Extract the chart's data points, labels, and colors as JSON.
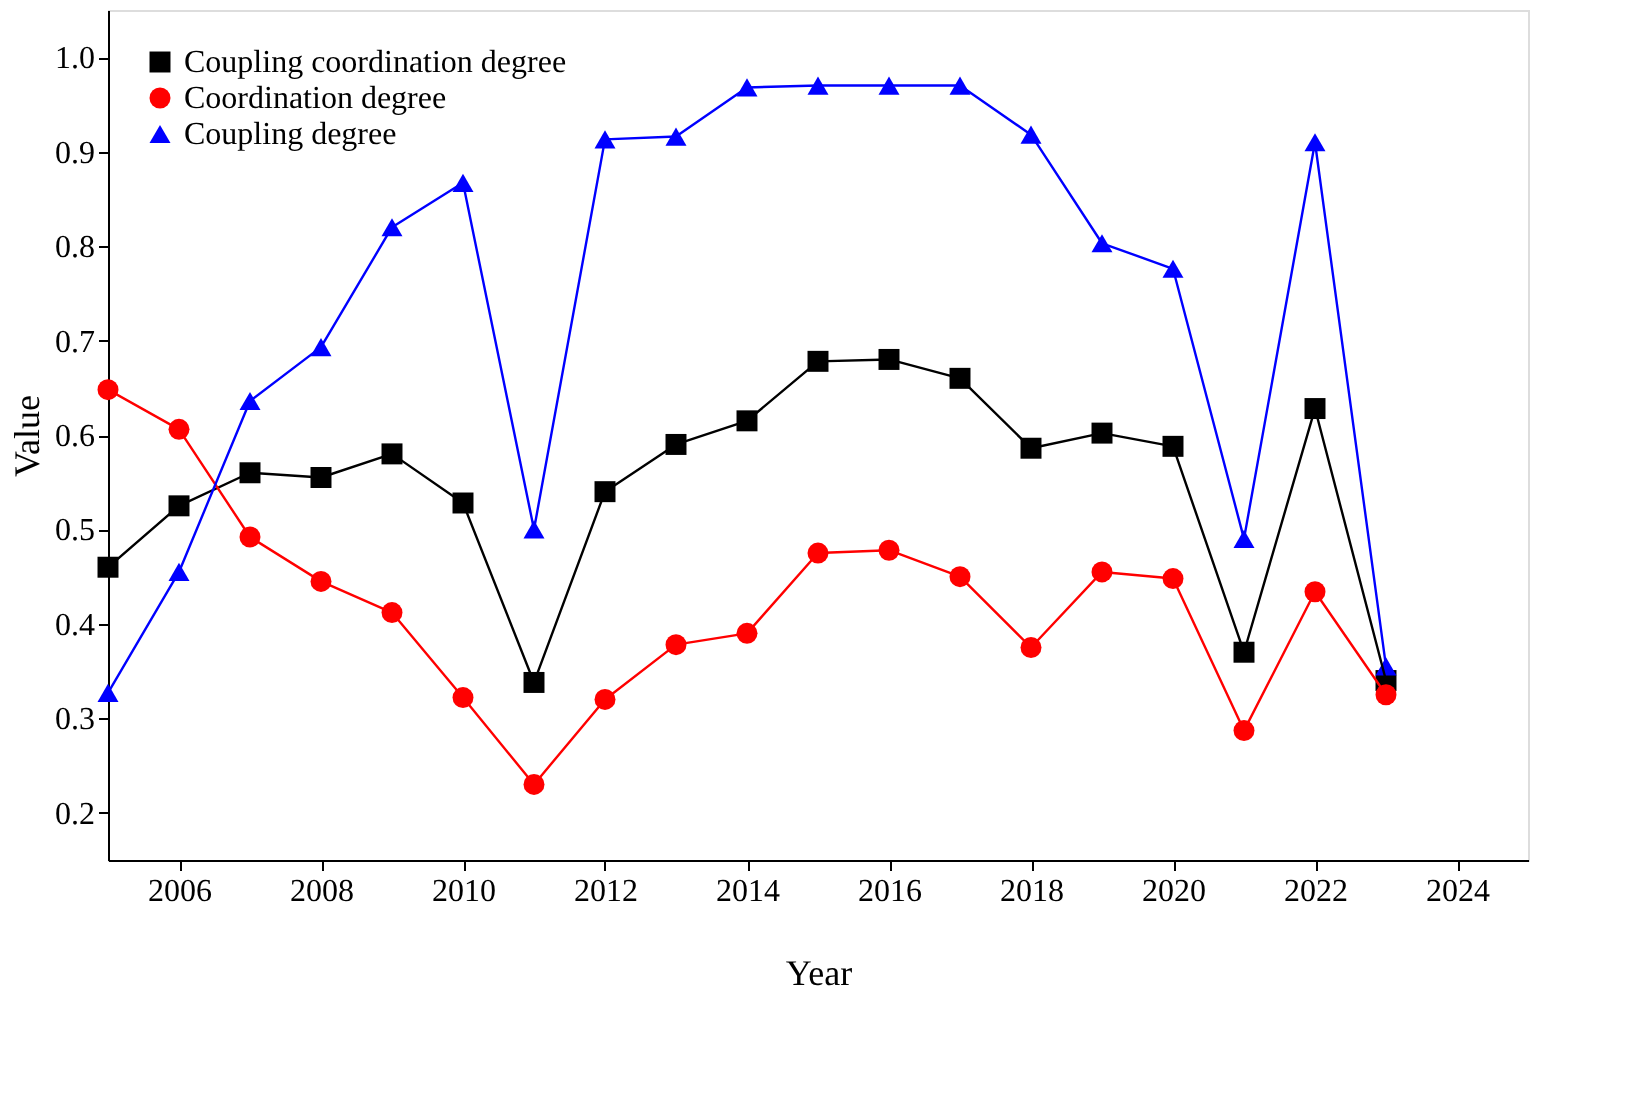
{
  "chart_data": {
    "type": "line",
    "xlabel": "Year",
    "ylabel": "Value",
    "x": [
      2005,
      2006,
      2007,
      2008,
      2009,
      2010,
      2011,
      2012,
      2013,
      2014,
      2015,
      2016,
      2017,
      2018,
      2019,
      2020,
      2021,
      2022,
      2023
    ],
    "xlim": [
      2005,
      2025
    ],
    "xticks": [
      2006,
      2008,
      2010,
      2012,
      2014,
      2016,
      2018,
      2020,
      2022,
      2024
    ],
    "ylim": [
      0.15,
      1.05
    ],
    "yticks": [
      0.2,
      0.3,
      0.4,
      0.5,
      0.6,
      0.7,
      0.8,
      0.9,
      {
        "value": 1.0,
        "label": "1.0"
      }
    ],
    "grid": false,
    "legend": "top left",
    "line_style": "solid",
    "series": [
      {
        "name": "Coupling coordination degree",
        "color": "#000000",
        "marker": "square",
        "values": [
          0.46,
          0.525,
          0.56,
          0.555,
          0.58,
          0.528,
          0.338,
          0.54,
          0.59,
          0.615,
          0.678,
          0.68,
          0.66,
          0.586,
          0.602,
          0.588,
          0.37,
          0.628,
          0.34
        ]
      },
      {
        "name": "Coordination degree",
        "color": "#ff0000",
        "marker": "circle",
        "values": [
          0.648,
          0.606,
          0.492,
          0.445,
          0.412,
          0.322,
          0.23,
          0.32,
          0.378,
          0.39,
          0.475,
          0.478,
          0.45,
          0.375,
          0.455,
          0.448,
          0.287,
          0.434,
          0.325
        ]
      },
      {
        "name": "Coupling degree",
        "color": "#0000ff",
        "marker": "triangle",
        "values": [
          0.327,
          0.455,
          0.636,
          0.693,
          0.82,
          0.867,
          0.5,
          0.913,
          0.916,
          0.968,
          0.97,
          0.97,
          0.97,
          0.918,
          0.803,
          0.776,
          0.49,
          0.91,
          0.355
        ]
      }
    ]
  }
}
